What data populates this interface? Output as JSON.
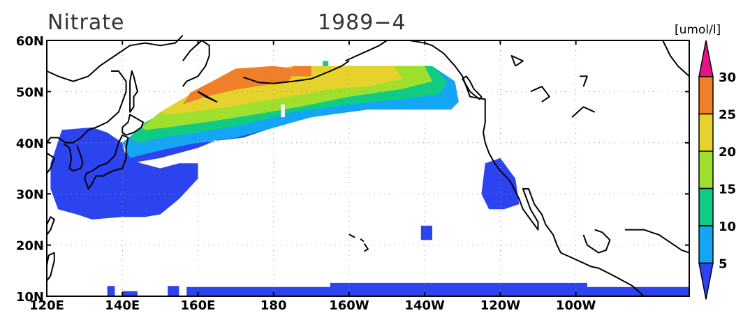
{
  "title_left": "Nitrate",
  "title_center": "1989−4",
  "unit": "[umol/l]",
  "map": {
    "lon_range": [
      120,
      290
    ],
    "lat_range": [
      10,
      60
    ],
    "x_ticks": [
      {
        "lon": 120,
        "label": "120E"
      },
      {
        "lon": 140,
        "label": "140E"
      },
      {
        "lon": 160,
        "label": "160E"
      },
      {
        "lon": 180,
        "label": "180"
      },
      {
        "lon": 200,
        "label": "160W"
      },
      {
        "lon": 220,
        "label": "140W"
      },
      {
        "lon": 240,
        "label": "120W"
      },
      {
        "lon": 260,
        "label": "100W"
      }
    ],
    "y_ticks": [
      {
        "lat": 10,
        "label": "10N"
      },
      {
        "lat": 20,
        "label": "20N"
      },
      {
        "lat": 30,
        "label": "30N"
      },
      {
        "lat": 40,
        "label": "40N"
      },
      {
        "lat": 50,
        "label": "50N"
      },
      {
        "lat": 60,
        "label": "60N"
      }
    ],
    "grid": "dotted"
  },
  "colorbar": {
    "levels": [
      5,
      10,
      15,
      20,
      25,
      30
    ],
    "colors": [
      "#2b44f0",
      "#12a6f4",
      "#10cc82",
      "#9fe02e",
      "#e6d22c",
      "#f07f2a",
      "#e8128a"
    ],
    "labels": [
      "5",
      "10",
      "15",
      "20",
      "25",
      "30"
    ]
  },
  "field": {
    "bands": [
      {
        "level": 25,
        "color": "#f07f2a",
        "region": "subarctic-core"
      },
      {
        "level": 20,
        "color": "#e6d22c",
        "region": "subarctic"
      },
      {
        "level": 15,
        "color": "#9fe02e",
        "region": "transition"
      },
      {
        "level": 10,
        "color": "#10cc82",
        "region": "transition-south"
      },
      {
        "level": 5,
        "color": "#12a6f4",
        "region": "kuroshio-extension"
      },
      {
        "level": 0,
        "color": "#2b44f0",
        "region": "low-nitrate"
      }
    ]
  }
}
